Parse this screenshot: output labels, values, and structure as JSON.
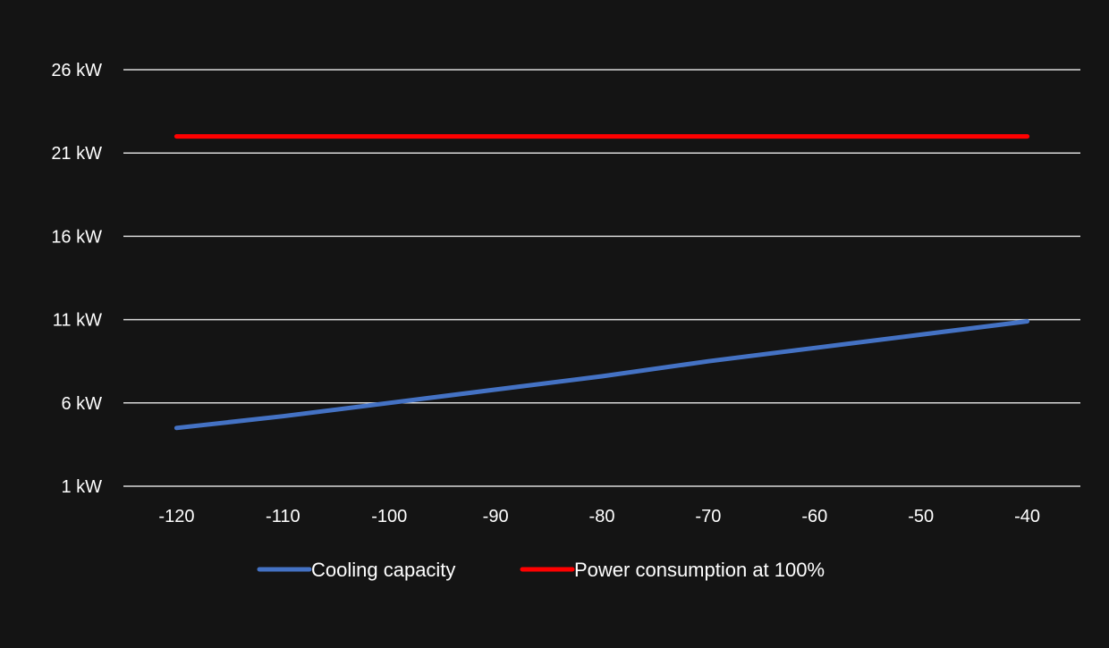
{
  "chart_data": {
    "type": "line",
    "title": "",
    "xlabel": "",
    "ylabel": "",
    "x": [
      -120,
      -110,
      -100,
      -90,
      -80,
      -70,
      -60,
      -50,
      -40
    ],
    "x_tick_labels": [
      "-120",
      "-110",
      "-100",
      "-90",
      "-80",
      "-70",
      "-60",
      "-50",
      "-40"
    ],
    "xlim": [
      -125,
      -35
    ],
    "ylim": [
      1,
      26
    ],
    "y_ticks": [
      1,
      6,
      11,
      16,
      21,
      26
    ],
    "y_tick_labels": [
      "1 kW",
      "6 kW",
      "11 kW",
      "16 kW",
      "21 kW",
      "26 kW"
    ],
    "series": [
      {
        "name": "Cooling capacity",
        "color": "#4472c4",
        "values": [
          4.5,
          5.2,
          6.0,
          6.8,
          7.6,
          8.5,
          9.3,
          10.1,
          10.9
        ]
      },
      {
        "name": "Power consumption at 100%",
        "color": "#ff0000",
        "values": [
          22,
          22,
          22,
          22,
          22,
          22,
          22,
          22,
          22
        ]
      }
    ],
    "grid": "horizontal",
    "legend": "bottom-center",
    "background": "#141414",
    "gridline_color": "#d9d9d9",
    "text_color": "#ffffff"
  }
}
